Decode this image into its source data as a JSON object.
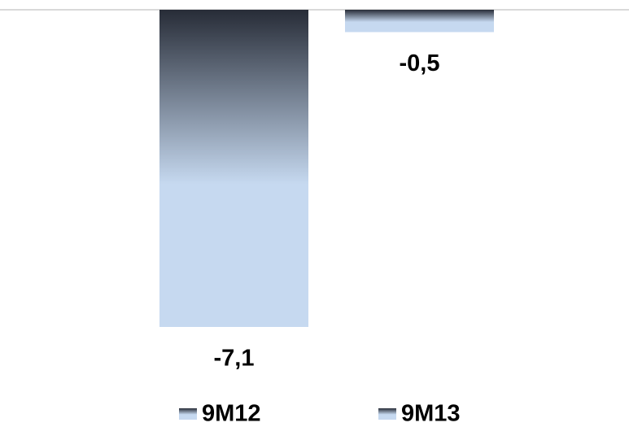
{
  "chart_data": {
    "type": "bar",
    "series": [
      {
        "name": "9M12",
        "color": "#c6d9f0",
        "values": [
          -7.1
        ],
        "value_labels": [
          "-7,1"
        ]
      },
      {
        "name": "9M13",
        "color": "#c6d9f0",
        "values": [
          -0.5
        ],
        "value_labels": [
          "-0,5"
        ]
      }
    ],
    "legend": "bottom"
  }
}
